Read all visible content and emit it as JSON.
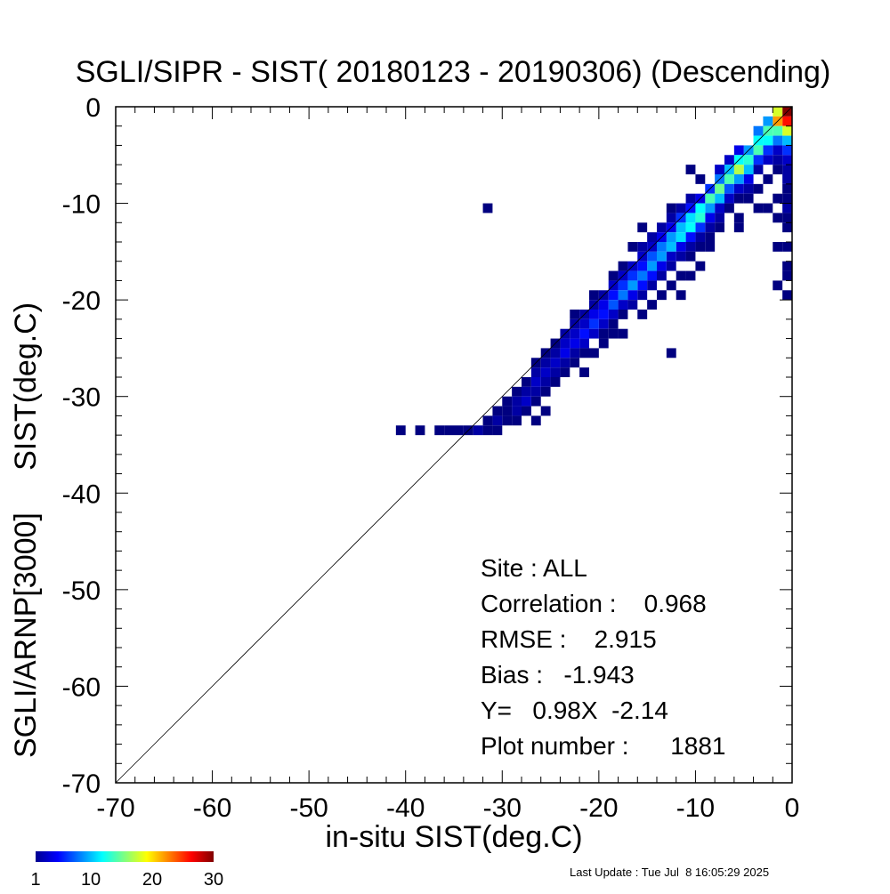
{
  "chart_data": {
    "type": "heatmap",
    "title": "SGLI/SIPR - SIST( 20180123 - 20190306) (Descending)",
    "xlabel": "in-situ SIST(deg.C)",
    "ylabel": "SGLI/ARNP[3000]     SIST(deg.C)",
    "xlim": [
      -70,
      0
    ],
    "ylim": [
      -70,
      0
    ],
    "xticks": [
      -70,
      -60,
      -50,
      -40,
      -30,
      -20,
      -10,
      0
    ],
    "yticks": [
      0,
      -10,
      -20,
      -30,
      -40,
      -50,
      -60,
      -70
    ],
    "grid": false,
    "reference_line": "1:1",
    "bin_size": 1,
    "colorbar": {
      "min": 1,
      "max": 30,
      "ticks": [
        "1",
        "10",
        "20",
        "30"
      ],
      "colormap": "jet"
    },
    "stats": {
      "site": "Site : ALL",
      "correlation": "Correlation :    0.968",
      "rmse": "RMSE :    2.915",
      "bias": "Bias :   -1.943",
      "regression": "Y=   0.98X  -2.14",
      "plot_number": "Plot number :      1881"
    },
    "cells": [
      [
        -1,
        -1,
        30
      ],
      [
        -1,
        -2,
        26
      ],
      [
        -1,
        -3,
        18
      ],
      [
        -1,
        -4,
        10
      ],
      [
        -1,
        -5,
        6
      ],
      [
        -1,
        -6,
        3
      ],
      [
        -1,
        -7,
        2
      ],
      [
        -1,
        -8,
        2
      ],
      [
        -1,
        -9,
        1
      ],
      [
        -1,
        -10,
        1
      ],
      [
        -1,
        -11,
        2
      ],
      [
        -1,
        -12,
        1
      ],
      [
        -1,
        -13,
        1
      ],
      [
        -1,
        -15,
        1
      ],
      [
        -1,
        -17,
        1
      ],
      [
        -1,
        -18,
        1
      ],
      [
        -1,
        -20,
        1
      ],
      [
        -2,
        -1,
        18
      ],
      [
        -2,
        -2,
        22
      ],
      [
        -2,
        -3,
        14
      ],
      [
        -2,
        -4,
        8
      ],
      [
        -2,
        -5,
        3
      ],
      [
        -2,
        -6,
        2
      ],
      [
        -2,
        -7,
        1
      ],
      [
        -2,
        -10,
        1
      ],
      [
        -2,
        -12,
        1
      ],
      [
        -2,
        -15,
        1
      ],
      [
        -2,
        -19,
        1
      ],
      [
        -3,
        -2,
        9
      ],
      [
        -3,
        -3,
        14
      ],
      [
        -3,
        -4,
        12
      ],
      [
        -3,
        -5,
        6
      ],
      [
        -3,
        -6,
        3
      ],
      [
        -3,
        -8,
        1
      ],
      [
        -3,
        -11,
        1
      ],
      [
        -4,
        -3,
        8
      ],
      [
        -4,
        -4,
        12
      ],
      [
        -4,
        -5,
        14
      ],
      [
        -4,
        -6,
        6
      ],
      [
        -4,
        -7,
        2
      ],
      [
        -4,
        -9,
        1
      ],
      [
        -4,
        -11,
        1
      ],
      [
        -5,
        -5,
        9
      ],
      [
        -5,
        -6,
        13
      ],
      [
        -5,
        -7,
        10
      ],
      [
        -5,
        -8,
        4
      ],
      [
        -5,
        -9,
        2
      ],
      [
        -5,
        -10,
        1
      ],
      [
        -6,
        -5,
        4
      ],
      [
        -6,
        -6,
        12
      ],
      [
        -6,
        -7,
        17
      ],
      [
        -6,
        -8,
        9
      ],
      [
        -6,
        -9,
        3
      ],
      [
        -6,
        -10,
        1
      ],
      [
        -6,
        -12,
        1
      ],
      [
        -6,
        -13,
        1
      ],
      [
        -7,
        -6,
        3
      ],
      [
        -7,
        -7,
        10
      ],
      [
        -7,
        -8,
        14
      ],
      [
        -7,
        -9,
        7
      ],
      [
        -7,
        -10,
        3
      ],
      [
        -7,
        -11,
        1
      ],
      [
        -8,
        -7,
        3
      ],
      [
        -8,
        -8,
        8
      ],
      [
        -8,
        -9,
        15
      ],
      [
        -8,
        -10,
        10
      ],
      [
        -8,
        -11,
        3
      ],
      [
        -8,
        -12,
        2
      ],
      [
        -8,
        -13,
        1
      ],
      [
        -9,
        -9,
        6
      ],
      [
        -9,
        -10,
        14
      ],
      [
        -9,
        -11,
        9
      ],
      [
        -9,
        -12,
        4
      ],
      [
        -9,
        -13,
        2
      ],
      [
        -9,
        -14,
        1
      ],
      [
        -9,
        -15,
        1
      ],
      [
        -10,
        -8,
        1
      ],
      [
        -10,
        -10,
        4
      ],
      [
        -10,
        -11,
        12
      ],
      [
        -10,
        -12,
        13
      ],
      [
        -10,
        -13,
        6
      ],
      [
        -10,
        -14,
        2
      ],
      [
        -10,
        -15,
        1
      ],
      [
        -10,
        -17,
        1
      ],
      [
        -11,
        -7,
        1
      ],
      [
        -11,
        -10,
        2
      ],
      [
        -11,
        -11,
        5
      ],
      [
        -11,
        -12,
        11
      ],
      [
        -11,
        -13,
        12
      ],
      [
        -11,
        -14,
        5
      ],
      [
        -11,
        -15,
        2
      ],
      [
        -11,
        -16,
        1
      ],
      [
        -11,
        -18,
        1
      ],
      [
        -12,
        -11,
        2
      ],
      [
        -12,
        -12,
        6
      ],
      [
        -12,
        -13,
        10
      ],
      [
        -12,
        -14,
        11
      ],
      [
        -12,
        -15,
        4
      ],
      [
        -12,
        -16,
        2
      ],
      [
        -12,
        -18,
        1
      ],
      [
        -12,
        -20,
        1
      ],
      [
        -13,
        -11,
        1
      ],
      [
        -13,
        -12,
        2
      ],
      [
        -13,
        -13,
        4
      ],
      [
        -13,
        -14,
        9
      ],
      [
        -13,
        -15,
        10
      ],
      [
        -13,
        -16,
        3
      ],
      [
        -13,
        -17,
        2
      ],
      [
        -13,
        -19,
        1
      ],
      [
        -13,
        -26,
        1
      ],
      [
        -14,
        -13,
        2
      ],
      [
        -14,
        -14,
        4
      ],
      [
        -14,
        -15,
        8
      ],
      [
        -14,
        -16,
        9
      ],
      [
        -14,
        -17,
        4
      ],
      [
        -14,
        -18,
        2
      ],
      [
        -14,
        -20,
        1
      ],
      [
        -15,
        -14,
        2
      ],
      [
        -15,
        -15,
        3
      ],
      [
        -15,
        -16,
        7
      ],
      [
        -15,
        -17,
        9
      ],
      [
        -15,
        -18,
        5
      ],
      [
        -15,
        -19,
        2
      ],
      [
        -15,
        -21,
        1
      ],
      [
        -16,
        -13,
        1
      ],
      [
        -16,
        -15,
        2
      ],
      [
        -16,
        -16,
        3
      ],
      [
        -16,
        -17,
        5
      ],
      [
        -16,
        -18,
        8
      ],
      [
        -16,
        -19,
        5
      ],
      [
        -16,
        -20,
        2
      ],
      [
        -16,
        -22,
        1
      ],
      [
        -17,
        -15,
        1
      ],
      [
        -17,
        -17,
        3
      ],
      [
        -17,
        -18,
        6
      ],
      [
        -17,
        -19,
        9
      ],
      [
        -17,
        -20,
        4
      ],
      [
        -17,
        -21,
        2
      ],
      [
        -18,
        -17,
        1
      ],
      [
        -18,
        -18,
        3
      ],
      [
        -18,
        -19,
        6
      ],
      [
        -18,
        -20,
        8
      ],
      [
        -18,
        -21,
        3
      ],
      [
        -18,
        -22,
        1
      ],
      [
        -18,
        -24,
        1
      ],
      [
        -19,
        -18,
        1
      ],
      [
        -19,
        -19,
        3
      ],
      [
        -19,
        -20,
        5
      ],
      [
        -19,
        -21,
        7
      ],
      [
        -19,
        -22,
        3
      ],
      [
        -19,
        -23,
        1
      ],
      [
        -19,
        -24,
        1
      ],
      [
        -20,
        -20,
        2
      ],
      [
        -20,
        -21,
        4
      ],
      [
        -20,
        -22,
        5
      ],
      [
        -20,
        -23,
        3
      ],
      [
        -20,
        -24,
        1
      ],
      [
        -20,
        -25,
        1
      ],
      [
        -21,
        -20,
        1
      ],
      [
        -21,
        -21,
        2
      ],
      [
        -21,
        -22,
        4
      ],
      [
        -21,
        -23,
        6
      ],
      [
        -21,
        -24,
        3
      ],
      [
        -21,
        -26,
        1
      ],
      [
        -22,
        -22,
        2
      ],
      [
        -22,
        -23,
        3
      ],
      [
        -22,
        -24,
        5
      ],
      [
        -22,
        -25,
        3
      ],
      [
        -22,
        -26,
        1
      ],
      [
        -22,
        -28,
        1
      ],
      [
        -23,
        -22,
        1
      ],
      [
        -23,
        -23,
        2
      ],
      [
        -23,
        -24,
        3
      ],
      [
        -23,
        -25,
        4
      ],
      [
        -23,
        -26,
        2
      ],
      [
        -23,
        -27,
        1
      ],
      [
        -24,
        -24,
        2
      ],
      [
        -24,
        -25,
        3
      ],
      [
        -24,
        -26,
        4
      ],
      [
        -24,
        -27,
        2
      ],
      [
        -24,
        -28,
        1
      ],
      [
        -25,
        -25,
        1
      ],
      [
        -25,
        -26,
        2
      ],
      [
        -25,
        -27,
        3
      ],
      [
        -25,
        -28,
        2
      ],
      [
        -25,
        -29,
        1
      ],
      [
        -26,
        -26,
        1
      ],
      [
        -26,
        -27,
        2
      ],
      [
        -26,
        -28,
        3
      ],
      [
        -26,
        -29,
        2
      ],
      [
        -26,
        -30,
        1
      ],
      [
        -26,
        -32,
        1
      ],
      [
        -27,
        -27,
        1
      ],
      [
        -27,
        -28,
        2
      ],
      [
        -27,
        -29,
        3
      ],
      [
        -27,
        -30,
        2
      ],
      [
        -27,
        -31,
        1
      ],
      [
        -27,
        -33,
        1
      ],
      [
        -28,
        -29,
        1
      ],
      [
        -28,
        -30,
        2
      ],
      [
        -28,
        -31,
        3
      ],
      [
        -28,
        -32,
        1
      ],
      [
        -29,
        -30,
        1
      ],
      [
        -29,
        -31,
        2
      ],
      [
        -29,
        -32,
        2
      ],
      [
        -29,
        -33,
        1
      ],
      [
        -30,
        -31,
        1
      ],
      [
        -30,
        -32,
        1
      ],
      [
        -30,
        -33,
        1
      ],
      [
        -31,
        -32,
        1
      ],
      [
        -31,
        -33,
        2
      ],
      [
        -31,
        -34,
        1
      ],
      [
        -32,
        -33,
        1
      ],
      [
        -32,
        -34,
        1
      ],
      [
        -33,
        -34,
        2
      ],
      [
        -34,
        -34,
        1
      ],
      [
        -35,
        -34,
        1
      ],
      [
        -36,
        -34,
        1
      ],
      [
        -37,
        -34,
        1
      ],
      [
        -39,
        -34,
        1
      ],
      [
        -41,
        -34,
        1
      ],
      [
        -32,
        -11,
        1
      ]
    ]
  },
  "footer": {
    "last_update": "Last Update : Tue Jul  8 16:05:29 2025"
  }
}
